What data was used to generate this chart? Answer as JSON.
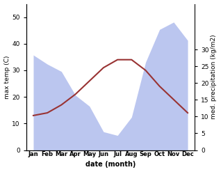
{
  "months": [
    "Jan",
    "Feb",
    "Mar",
    "Apr",
    "May",
    "Jun",
    "Jul",
    "Aug",
    "Sep",
    "Oct",
    "Nov",
    "Dec"
  ],
  "month_positions": [
    1,
    2,
    3,
    4,
    5,
    6,
    7,
    8,
    9,
    10,
    11,
    12
  ],
  "temp_max": [
    13,
    14,
    17,
    21,
    26,
    31,
    34,
    34,
    30,
    24,
    19,
    14
  ],
  "precipitation": [
    52,
    47,
    43,
    30,
    24,
    10,
    8,
    18,
    48,
    66,
    70,
    60
  ],
  "temp_color": "#993333",
  "precip_color": "#b0bced",
  "temp_ylim": [
    0,
    55
  ],
  "precip_ylim": [
    0,
    30
  ],
  "temp_yticks": [
    0,
    10,
    20,
    30,
    40,
    50
  ],
  "precip_yticks": [
    0,
    5,
    10,
    15,
    20,
    25,
    30
  ],
  "precip_scale_max": 80,
  "ylabel_left": "max temp (C)",
  "ylabel_right": "med. precipitation (kg/m2)",
  "xlabel": "date (month)",
  "background_color": "#ffffff",
  "line_width": 1.5
}
